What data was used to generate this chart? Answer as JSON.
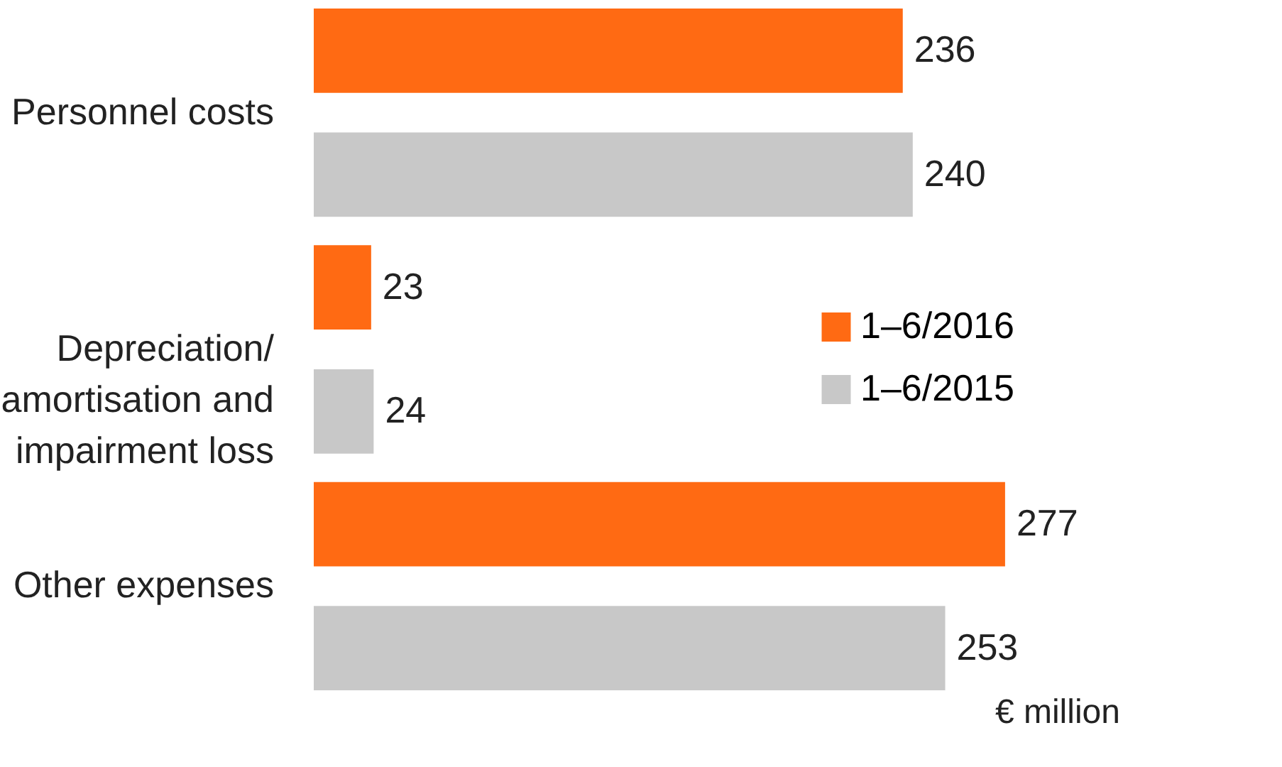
{
  "chart_data": {
    "type": "bar",
    "orientation": "horizontal",
    "categories": [
      "Personnel costs",
      "Depreciation/ amortisation and impairment loss",
      "Other expenses"
    ],
    "series": [
      {
        "name": "1–6/2016",
        "color": "#ff6a13",
        "values": [
          236,
          23,
          277
        ]
      },
      {
        "name": "1–6/2015",
        "color": "#c8c8c8",
        "values": [
          240,
          24,
          253
        ]
      }
    ],
    "data_labels": true,
    "legend": "right",
    "annotations": [
      "€ million"
    ]
  }
}
